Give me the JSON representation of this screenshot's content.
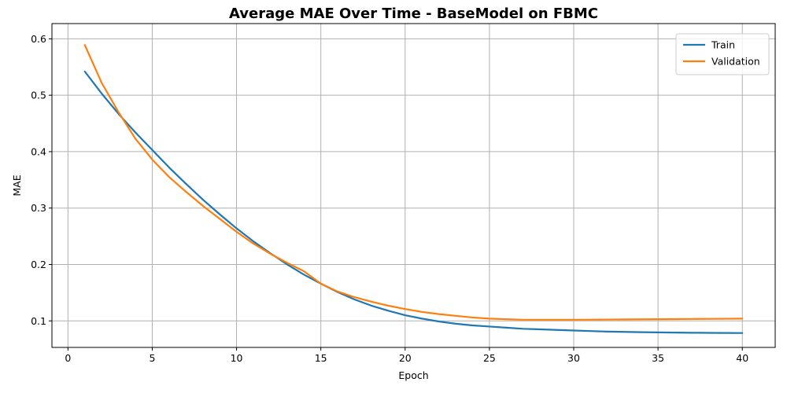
{
  "chart_data": {
    "type": "line",
    "title": "Average MAE Over Time - BaseModel on FBMC",
    "xlabel": "Epoch",
    "ylabel": "MAE",
    "xlim": [
      -0.95,
      41.95
    ],
    "ylim": [
      0.053,
      0.627
    ],
    "xticks": [
      0,
      5,
      10,
      15,
      20,
      25,
      30,
      35,
      40
    ],
    "yticks": [
      0.1,
      0.2,
      0.3,
      0.4,
      0.5,
      0.6
    ],
    "grid": true,
    "legend_position": "top-right",
    "x": [
      1,
      2,
      3,
      4,
      5,
      6,
      7,
      8,
      9,
      10,
      11,
      12,
      13,
      14,
      15,
      16,
      17,
      18,
      19,
      20,
      21,
      22,
      23,
      24,
      25,
      26,
      27,
      28,
      29,
      30,
      31,
      32,
      33,
      34,
      35,
      36,
      37,
      38,
      39,
      40
    ],
    "series": [
      {
        "name": "Train",
        "color": "#1f77b4",
        "values": [
          0.542,
          0.503,
          0.467,
          0.434,
          0.403,
          0.372,
          0.343,
          0.315,
          0.289,
          0.264,
          0.241,
          0.22,
          0.2,
          0.182,
          0.166,
          0.151,
          0.138,
          0.127,
          0.118,
          0.11,
          0.104,
          0.099,
          0.095,
          0.092,
          0.09,
          0.088,
          0.086,
          0.085,
          0.084,
          0.083,
          0.082,
          0.081,
          0.0805,
          0.08,
          0.0797,
          0.0793,
          0.079,
          0.0788,
          0.0786,
          0.0785
        ]
      },
      {
        "name": "Validation",
        "color": "#ff7f0e",
        "values": [
          0.589,
          0.522,
          0.47,
          0.423,
          0.386,
          0.355,
          0.329,
          0.304,
          0.281,
          0.258,
          0.237,
          0.219,
          0.203,
          0.188,
          0.166,
          0.152,
          0.142,
          0.134,
          0.127,
          0.121,
          0.116,
          0.112,
          0.109,
          0.106,
          0.104,
          0.103,
          0.102,
          0.102,
          0.102,
          0.102,
          0.1022,
          0.1024,
          0.1026,
          0.1028,
          0.103,
          0.1032,
          0.1034,
          0.1036,
          0.1038,
          0.104
        ]
      }
    ]
  }
}
